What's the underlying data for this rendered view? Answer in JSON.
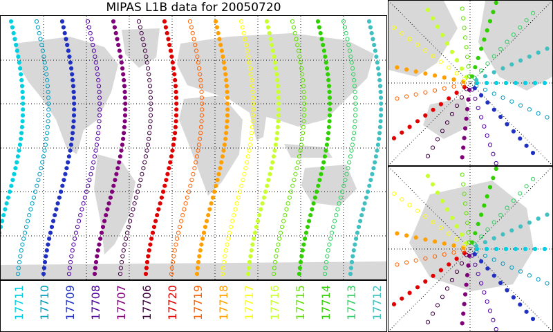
{
  "title": "MIPAS L1B data for 20050720",
  "orbits": [
    {
      "label": "17711",
      "color": "#00d0e0"
    },
    {
      "label": "17710",
      "color": "#009cc0"
    },
    {
      "label": "17709",
      "color": "#2030c0"
    },
    {
      "label": "17708",
      "color": "#5000a0"
    },
    {
      "label": "17707",
      "color": "#80007a"
    },
    {
      "label": "17706",
      "color": "#400040"
    },
    {
      "label": "17720",
      "color": "#e00000"
    },
    {
      "label": "17719",
      "color": "#ff6000"
    },
    {
      "label": "17718",
      "color": "#ffa000"
    },
    {
      "label": "17717",
      "color": "#ffff00"
    },
    {
      "label": "17716",
      "color": "#c8ff30"
    },
    {
      "label": "17715",
      "color": "#60e000"
    },
    {
      "label": "17714",
      "color": "#30d000"
    },
    {
      "label": "17713",
      "color": "#30d060"
    },
    {
      "label": "17712",
      "color": "#40c0c0"
    }
  ],
  "map": {
    "background_land": "#d8d8d8",
    "background_ocean": "#ffffff",
    "grid": true
  }
}
